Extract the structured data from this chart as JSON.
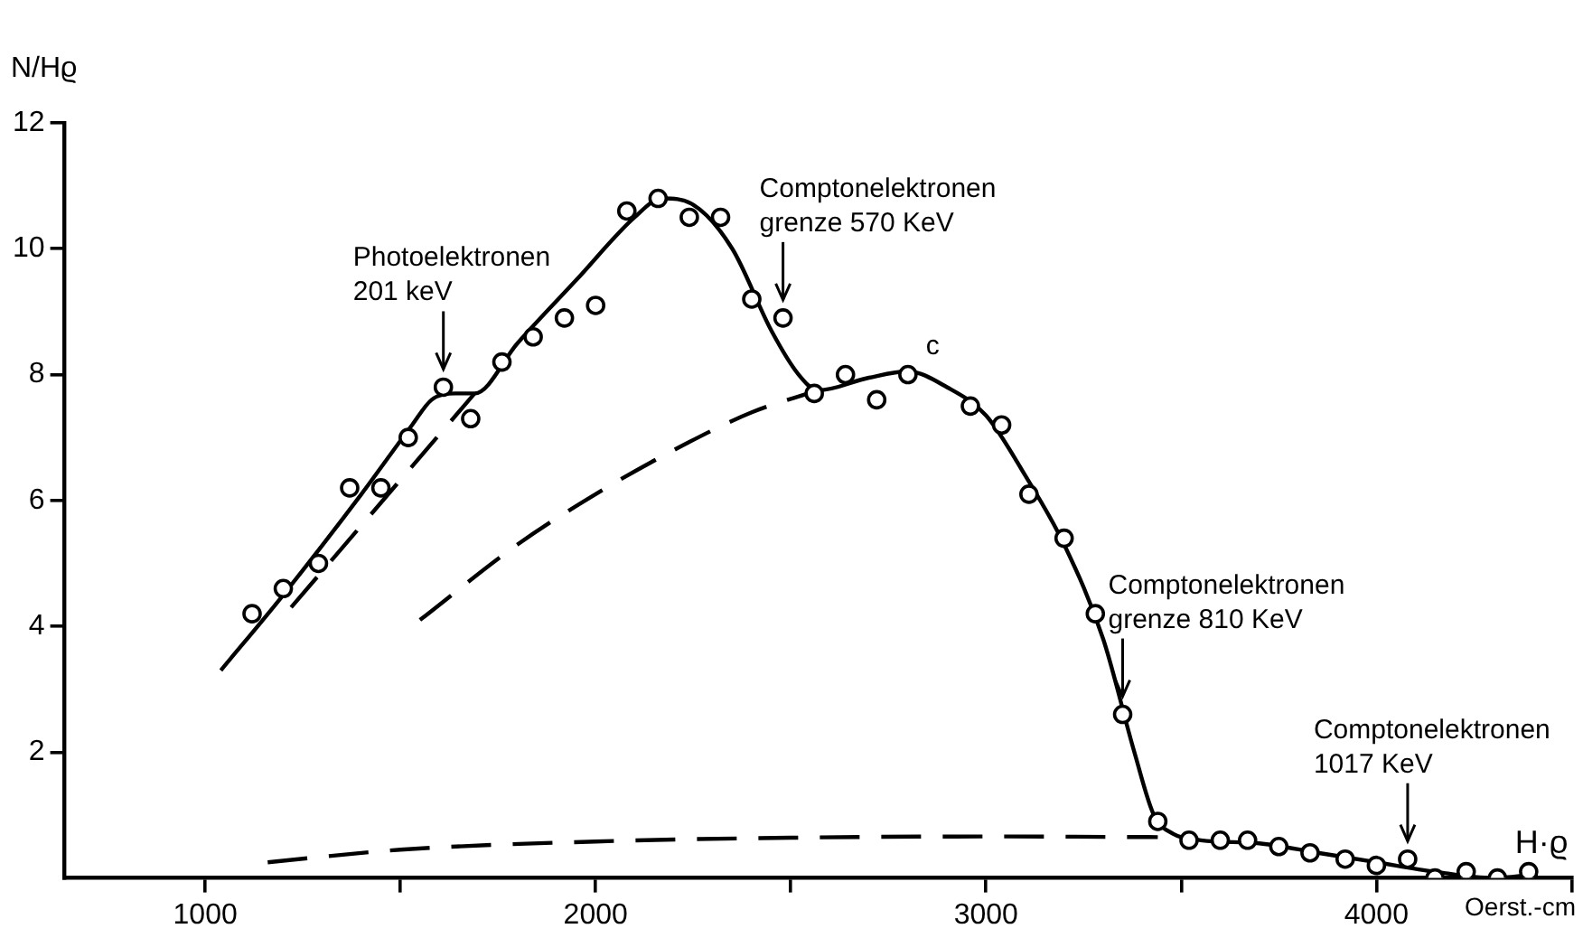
{
  "chart_data": {
    "type": "scatter",
    "xlabel": "H·ϱ",
    "ylabel": "N/Hϱ",
    "xlim": [
      640,
      4500
    ],
    "ylim": [
      0,
      12
    ],
    "xticks": [
      1000,
      {
        "value": 1500,
        "label": null
      },
      2000,
      {
        "value": 2500,
        "label": null
      },
      3000,
      {
        "value": 3500,
        "label": null
      },
      4000,
      {
        "value": 4500,
        "label": null
      }
    ],
    "yticks": [
      2,
      4,
      6,
      8,
      10,
      12
    ],
    "grid": false,
    "legend": false,
    "marker": "circle",
    "series": [
      {
        "color": "#000000",
        "x": [
          1120,
          1200,
          1290,
          1370,
          1450,
          1520,
          1610,
          1680,
          1760,
          1840,
          1920,
          2000,
          2080,
          2160,
          2240,
          2320,
          2400,
          2480,
          2560,
          2640,
          2720,
          2800,
          2960,
          3040,
          3110,
          3200,
          3280,
          3350,
          3440,
          3520,
          3600,
          3670,
          3750,
          3830,
          3920,
          4000,
          4080,
          4150,
          4230,
          4310,
          4390
        ],
        "values": [
          4.2,
          4.6,
          5.0,
          6.2,
          6.2,
          7.0,
          7.8,
          7.3,
          8.2,
          8.6,
          8.9,
          9.1,
          10.6,
          10.8,
          10.5,
          10.5,
          9.2,
          8.9,
          7.7,
          8.0,
          7.6,
          8.0,
          7.5,
          7.2,
          6.1,
          5.4,
          4.2,
          2.6,
          0.9,
          0.6,
          0.6,
          0.6,
          0.5,
          0.4,
          0.3,
          0.2,
          0.3,
          0.0,
          0.1,
          0.0,
          0.1
        ]
      },
      {
        "type": "line",
        "color": "#000000",
        "marker": "none",
        "line_style": "solid",
        "x": [
          1040,
          1200,
          1400,
          1530,
          1580,
          1640,
          1690,
          1800,
          1950,
          2100,
          2170,
          2250,
          2350,
          2450,
          2520,
          2570,
          2700,
          2800,
          2900,
          3000,
          3100,
          3200,
          3300,
          3380,
          3430,
          3480,
          3550,
          3700,
          3850,
          4000,
          4150,
          4300,
          4400
        ],
        "values": [
          3.3,
          4.5,
          6.1,
          7.2,
          7.6,
          7.7,
          7.7,
          8.5,
          9.5,
          10.5,
          10.8,
          10.7,
          10.0,
          8.7,
          8.0,
          7.75,
          7.95,
          8.05,
          7.8,
          7.35,
          6.4,
          5.3,
          3.8,
          2.0,
          1.0,
          0.7,
          0.6,
          0.55,
          0.4,
          0.25,
          0.1,
          0.0,
          0.05
        ]
      },
      {
        "type": "line",
        "color": "#000000",
        "marker": "none",
        "line_style": "dashed",
        "x": [
          1220,
          1690
        ],
        "values": [
          4.3,
          7.7
        ]
      },
      {
        "type": "line",
        "color": "#000000",
        "marker": "none",
        "line_style": "dashed",
        "x": [
          1550,
          1800,
          2000,
          2200,
          2400,
          2570
        ],
        "values": [
          4.1,
          5.3,
          6.1,
          6.8,
          7.4,
          7.75
        ]
      },
      {
        "type": "line",
        "color": "#000000",
        "marker": "none",
        "line_style": "dashed",
        "x": [
          1160,
          1500,
          2000,
          2500,
          3000,
          3440
        ],
        "values": [
          0.25,
          0.45,
          0.58,
          0.64,
          0.66,
          0.65
        ]
      }
    ],
    "annotations": [
      {
        "text": "Photoelektronen\n201 keV",
        "x": 1610,
        "y": 7.8
      },
      {
        "text": "Comptonelektronen\ngrenze 570 KeV",
        "x": 2480,
        "y": 8.9
      },
      {
        "text": "c",
        "x": 2800,
        "y": 8.0
      },
      {
        "text": "Comptonelektronen\ngrenze 810 KeV",
        "x": 3350,
        "y": 2.6
      },
      {
        "text": "Comptonelektronen\n1017 KeV",
        "x": 4080,
        "y": 0.3
      },
      "Oerst.-cm"
    ]
  }
}
